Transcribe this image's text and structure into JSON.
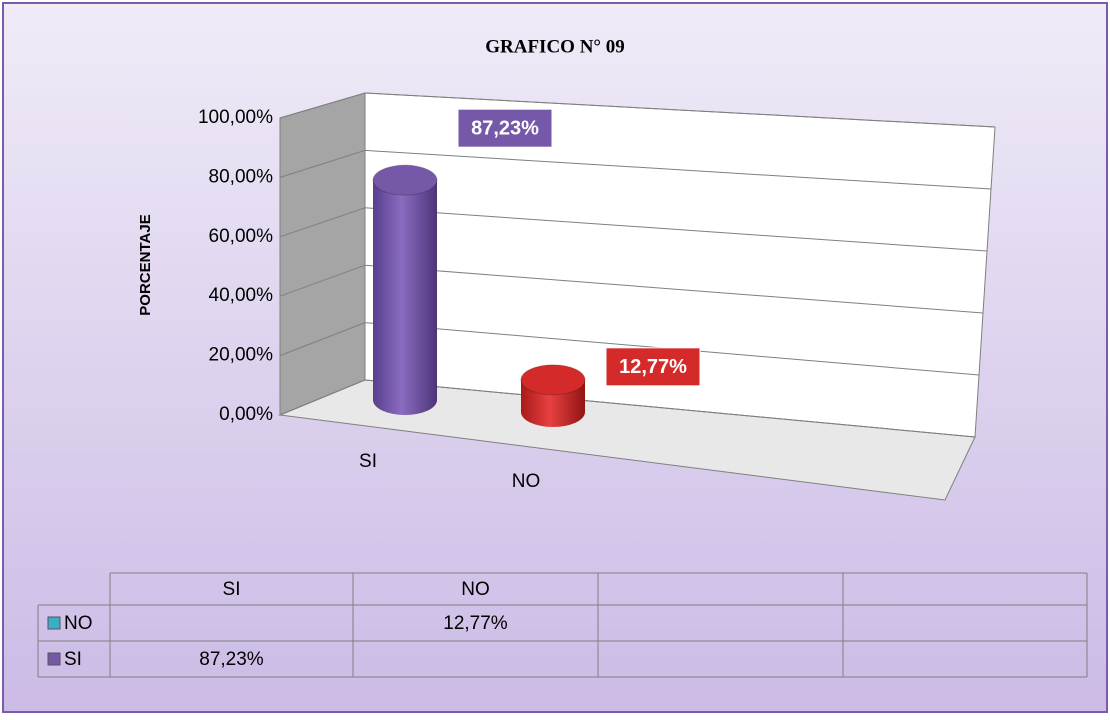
{
  "chart_data": {
    "type": "cylinder3d",
    "title": "GRAFICO N° 09",
    "y_label": "PORCENTAJE",
    "categories": [
      "SI",
      "NO",
      null,
      null
    ],
    "series": [
      {
        "name": "SI",
        "color": "#7558a8",
        "key_color": "#7558a8",
        "values": [
          87.23,
          null,
          null,
          null
        ],
        "value_labels": [
          "87,23%",
          null,
          null,
          null
        ]
      },
      {
        "name": "NO",
        "color": "#d42a2a",
        "key_color": "#3aaec6",
        "values": [
          null,
          12.77,
          null,
          null
        ],
        "value_labels": [
          null,
          "12,77%",
          null,
          null
        ]
      }
    ],
    "ylim": [
      0,
      100
    ],
    "yticks": [
      {
        "value": 0,
        "label": "0,00%"
      },
      {
        "value": 20,
        "label": "20,00%"
      },
      {
        "value": 40,
        "label": "40,00%"
      },
      {
        "value": 60,
        "label": "60,00%"
      },
      {
        "value": 80,
        "label": "80,00%"
      },
      {
        "value": 100,
        "label": "100,00%"
      }
    ],
    "grid": true,
    "data_table": true
  }
}
